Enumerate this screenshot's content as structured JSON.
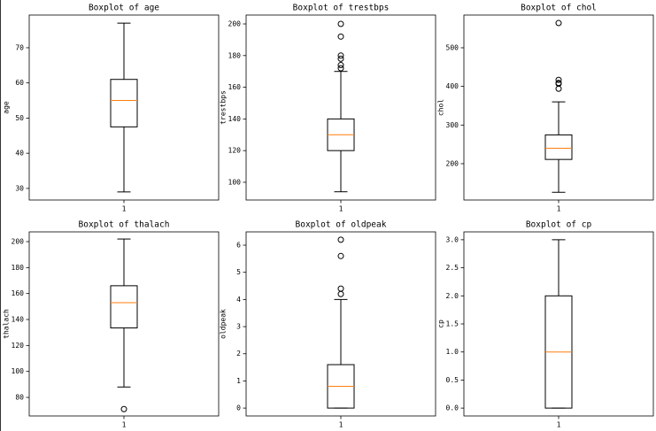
{
  "chart_data": [
    {
      "type": "box",
      "title": "Boxplot of age",
      "ylabel": "age",
      "categories": [
        "1"
      ],
      "boxes": [
        {
          "whislo": 29,
          "q1": 47.5,
          "med": 55,
          "q3": 61,
          "whishi": 77,
          "fliers": []
        }
      ],
      "ylim": [
        26.7,
        79.3
      ],
      "yticks": [
        30,
        40,
        50,
        60,
        70
      ],
      "color": "#000000",
      "median_color": "#ff7f0e"
    },
    {
      "type": "box",
      "title": "Boxplot of trestbps",
      "ylabel": "trestbps",
      "categories": [
        "1"
      ],
      "boxes": [
        {
          "whislo": 94,
          "q1": 120,
          "med": 130,
          "q3": 140,
          "whishi": 170,
          "fliers": [
            172,
            174,
            178,
            180,
            192,
            200
          ]
        }
      ],
      "ylim": [
        88.8,
        205.6
      ],
      "yticks": [
        100,
        120,
        140,
        160,
        180,
        200
      ],
      "color": "#000000",
      "median_color": "#ff7f0e"
    },
    {
      "type": "box",
      "title": "Boxplot of chol",
      "ylabel": "chol",
      "categories": [
        "1"
      ],
      "boxes": [
        {
          "whislo": 126,
          "q1": 211,
          "med": 240,
          "q3": 274.5,
          "whishi": 360,
          "fliers": [
            394,
            407,
            409,
            417,
            564
          ]
        }
      ],
      "ylim": [
        106,
        584.7
      ],
      "yticks": [
        200,
        300,
        400,
        500
      ],
      "color": "#000000",
      "median_color": "#ff7f0e"
    },
    {
      "type": "box",
      "title": "Boxplot of thalach",
      "ylabel": "thalach",
      "categories": [
        "1"
      ],
      "boxes": [
        {
          "whislo": 88,
          "q1": 133.5,
          "med": 153,
          "q3": 166,
          "whishi": 202,
          "fliers": [
            71
          ]
        }
      ],
      "ylim": [
        65.7,
        207.5
      ],
      "yticks": [
        80,
        100,
        120,
        140,
        160,
        180,
        200
      ],
      "color": "#000000",
      "median_color": "#ff7f0e"
    },
    {
      "type": "box",
      "title": "Boxplot of oldpeak",
      "ylabel": "oldpeak",
      "categories": [
        "1"
      ],
      "boxes": [
        {
          "whislo": 0,
          "q1": 0,
          "med": 0.8,
          "q3": 1.6,
          "whishi": 4,
          "fliers": [
            4.2,
            4.4,
            5.6,
            6.2
          ]
        }
      ],
      "ylim": [
        -0.29,
        6.49
      ],
      "yticks": [
        0,
        1,
        2,
        3,
        4,
        5,
        6
      ],
      "color": "#000000",
      "median_color": "#ff7f0e"
    },
    {
      "type": "box",
      "title": "Boxplot of cp",
      "ylabel": "cp",
      "categories": [
        "1"
      ],
      "boxes": [
        {
          "whislo": 0,
          "q1": 0,
          "med": 1,
          "q3": 2,
          "whishi": 3,
          "fliers": []
        }
      ],
      "ylim": [
        -0.14,
        3.14
      ],
      "yticks": [
        {
          "value": 0,
          "label": "0.0"
        },
        0.5,
        {
          "value": 1,
          "label": "1.0"
        },
        1.5,
        {
          "value": 2,
          "label": "2.0"
        },
        2.5,
        {
          "value": 3,
          "label": "3.0"
        }
      ],
      "color": "#000000",
      "median_color": "#ff7f0e"
    }
  ]
}
